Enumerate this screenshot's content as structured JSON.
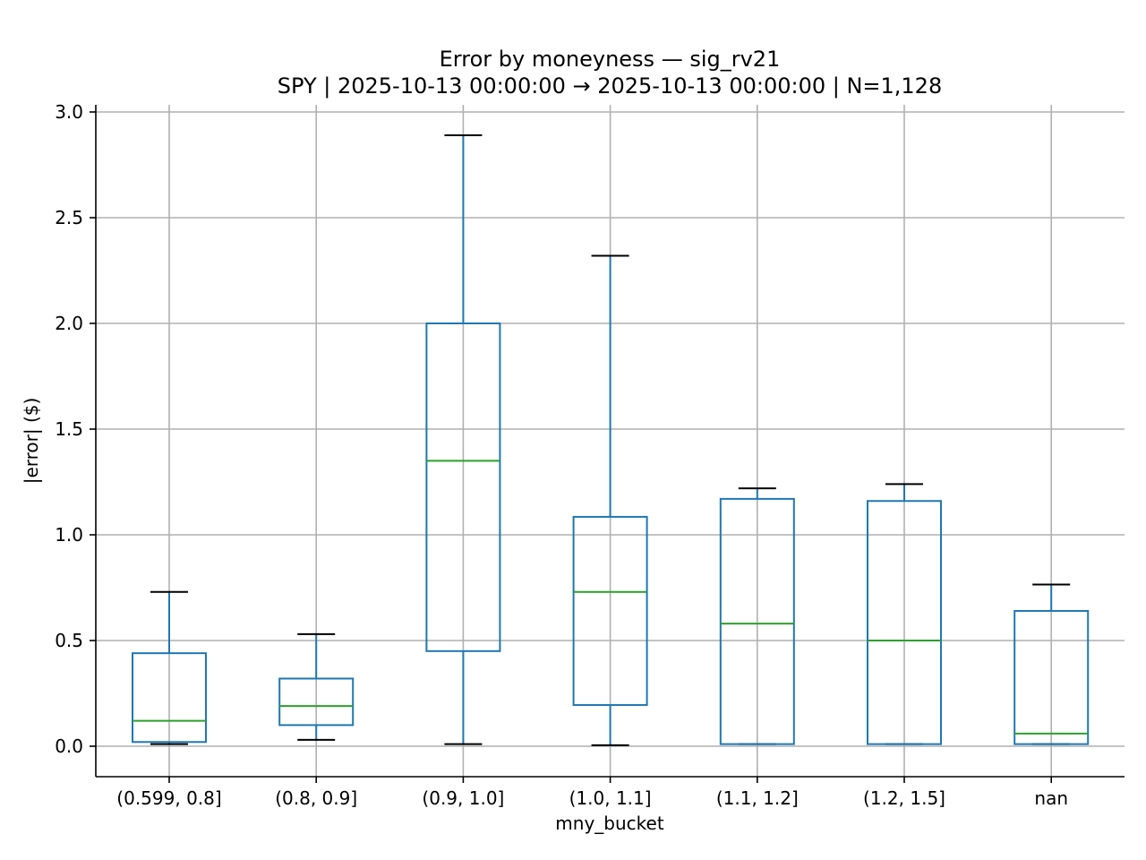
{
  "chart_data": {
    "type": "box",
    "title": "Error by moneyness — sig_rv21",
    "subtitle": "SPY | 2025-10-13 00:00:00 → 2025-10-13 00:00:00 | N=1,128",
    "xlabel": "mny_bucket",
    "ylabel": "|error| ($)",
    "ylim": [
      -0.145,
      3.03
    ],
    "yticks": [
      0.0,
      0.5,
      1.0,
      1.5,
      2.0,
      2.5,
      3.0
    ],
    "ytick_labels": [
      "0.0",
      "0.5",
      "1.0",
      "1.5",
      "2.0",
      "2.5",
      "3.0"
    ],
    "grid": true,
    "categories": [
      "(0.599, 0.8]",
      "(0.8, 0.9]",
      "(0.9, 1.0]",
      "(1.0, 1.1]",
      "(1.1, 1.2]",
      "(1.2, 1.5]",
      "nan"
    ],
    "boxes": [
      {
        "whisker_low": 0.01,
        "q1": 0.02,
        "median": 0.12,
        "q3": 0.44,
        "whisker_high": 0.73
      },
      {
        "whisker_low": 0.03,
        "q1": 0.1,
        "median": 0.19,
        "q3": 0.32,
        "whisker_high": 0.53
      },
      {
        "whisker_low": 0.01,
        "q1": 0.45,
        "median": 1.35,
        "q3": 2.0,
        "whisker_high": 2.89
      },
      {
        "whisker_low": 0.005,
        "q1": 0.195,
        "median": 0.73,
        "q3": 1.085,
        "whisker_high": 2.32
      },
      {
        "whisker_low": 0.01,
        "q1": 0.01,
        "median": 0.58,
        "q3": 1.17,
        "whisker_high": 1.22
      },
      {
        "whisker_low": 0.01,
        "q1": 0.01,
        "median": 0.5,
        "q3": 1.16,
        "whisker_high": 1.24
      },
      {
        "whisker_low": 0.01,
        "q1": 0.01,
        "median": 0.06,
        "q3": 0.64,
        "whisker_high": 0.765
      }
    ],
    "colors": {
      "box": "#1f77b4",
      "median": "#2ca02c",
      "cap": "#000000",
      "grid": "#b0b0b0",
      "axis": "#000000"
    }
  }
}
